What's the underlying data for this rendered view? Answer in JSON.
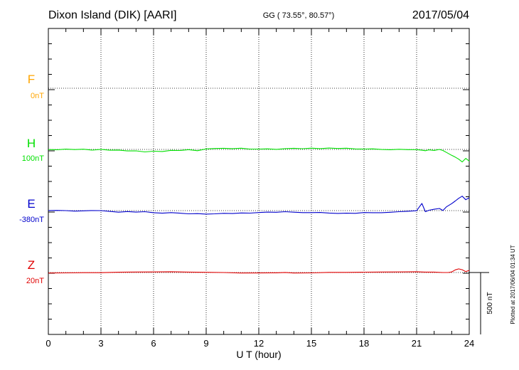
{
  "header": {
    "station": "Dixon Island (DIK)  [AARI]",
    "coords": "GG ( 73.55°,  80.57°)",
    "date": "2017/05/04"
  },
  "side_note": "Plotted at 2017/06/04 01:34 UT",
  "scale_bar_label": "500 nT",
  "colors": {
    "F": "#ffa500",
    "H": "#00e000",
    "E": "#0000cc",
    "Z": "#e00000"
  },
  "chart_data": {
    "type": "line",
    "title": "Dixon Island (DIK)  [AARI]",
    "xlabel": "U T (hour)",
    "xlim": [
      0,
      24
    ],
    "x_ticks": [
      "0",
      "3",
      "6",
      "9",
      "12",
      "15",
      "18",
      "21",
      "24"
    ],
    "scale_nT": 500,
    "grid": true,
    "series": [
      {
        "name": "F",
        "offset_label": "0nT",
        "values": []
      },
      {
        "name": "H",
        "offset_label": "100nT",
        "x": [
          0,
          0.5,
          1,
          1.5,
          2,
          2.5,
          3,
          3.5,
          4,
          4.5,
          5,
          5.5,
          6,
          6.5,
          7,
          7.5,
          8,
          8.5,
          9,
          9.5,
          10,
          10.5,
          11,
          11.5,
          12,
          12.5,
          13,
          13.5,
          14,
          14.5,
          15,
          15.5,
          16,
          16.5,
          17,
          17.5,
          18,
          18.5,
          19,
          19.5,
          20,
          20.5,
          21,
          21.3,
          21.5,
          21.7,
          22,
          22.3,
          22.5,
          22.7,
          23,
          23.2,
          23.4,
          23.6,
          23.8,
          24
        ],
        "values": [
          0,
          -3,
          0,
          -5,
          -3,
          -10,
          -3,
          -8,
          -5,
          -10,
          -8,
          -16,
          -10,
          -13,
          -5,
          -8,
          -3,
          -13,
          0,
          3,
          5,
          3,
          8,
          3,
          5,
          8,
          5,
          11,
          13,
          8,
          11,
          5,
          8,
          3,
          5,
          0,
          0,
          3,
          0,
          0,
          5,
          3,
          3,
          -3,
          -8,
          -3,
          -10,
          -3,
          -13,
          -29,
          -52,
          -65,
          -80,
          -100,
          -70,
          -90
        ]
      },
      {
        "name": "E",
        "offset_label": "-380nT",
        "x": [
          0,
          0.5,
          1,
          1.5,
          2,
          2.5,
          3,
          3.5,
          4,
          4.5,
          5,
          5.5,
          6,
          6.5,
          7,
          7.5,
          8,
          8.5,
          9,
          9.5,
          10,
          10.5,
          11,
          11.5,
          12,
          12.5,
          13,
          13.5,
          14,
          14.5,
          15,
          15.5,
          16,
          16.5,
          17,
          17.5,
          18,
          18.5,
          19,
          19.5,
          20,
          20.5,
          21,
          21.3,
          21.5,
          21.7,
          22,
          22.3,
          22.5,
          22.7,
          23,
          23.2,
          23.4,
          23.6,
          23.8,
          24
        ],
        "values": [
          0,
          3,
          3,
          0,
          3,
          5,
          3,
          -5,
          -13,
          -10,
          -16,
          -13,
          -21,
          -24,
          -18,
          -21,
          -24,
          -21,
          -24,
          -21,
          -18,
          -21,
          -18,
          -21,
          -18,
          -16,
          -18,
          -13,
          -16,
          -18,
          -16,
          -13,
          -16,
          -18,
          -16,
          -18,
          -13,
          -16,
          -18,
          -16,
          -13,
          -10,
          -5,
          55,
          -10,
          3,
          13,
          21,
          5,
          35,
          60,
          80,
          100,
          115,
          85,
          100
        ]
      },
      {
        "name": "Z",
        "offset_label": "20nT",
        "x": [
          0,
          1,
          2,
          3,
          4,
          5,
          6,
          7,
          8,
          9,
          10,
          11,
          12,
          13,
          13.5,
          14,
          15,
          16,
          17,
          18,
          19,
          20,
          21,
          21.5,
          22,
          22.5,
          22.8,
          23,
          23.2,
          23.4,
          23.6,
          23.8,
          24
        ],
        "values": [
          0,
          0,
          0,
          -2,
          0,
          0,
          0,
          2,
          0,
          0,
          0,
          -2,
          0,
          2,
          5,
          0,
          0,
          2,
          0,
          0,
          0,
          0,
          2,
          0,
          2,
          0,
          2,
          8,
          26,
          34,
          26,
          10,
          18
        ]
      }
    ]
  }
}
